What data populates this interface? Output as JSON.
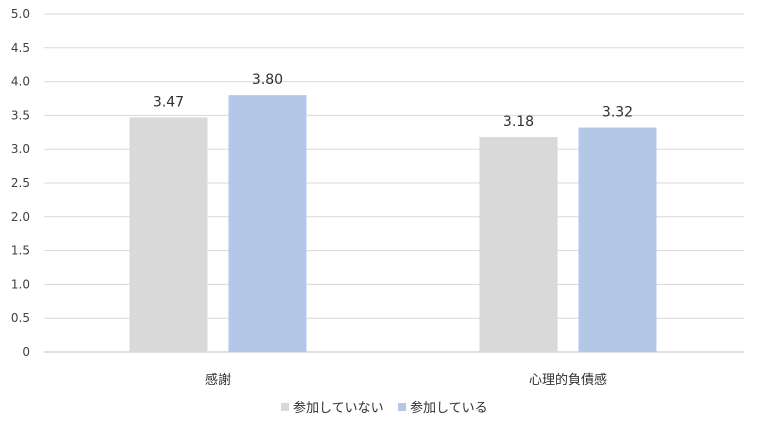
{
  "chart_data": {
    "type": "bar",
    "categories": [
      "感謝",
      "心理的負債感"
    ],
    "series": [
      {
        "name": "参加していない",
        "values": [
          3.47,
          3.18
        ],
        "labels": [
          "3.47",
          "3.18"
        ],
        "color": "#d9d9d9"
      },
      {
        "name": "参加している",
        "values": [
          3.8,
          3.32
        ],
        "labels": [
          "3.80",
          "3.32"
        ],
        "color": "#b4c7e7"
      }
    ],
    "y_ticks": [
      "0",
      "0.5",
      "1.0",
      "1.5",
      "2.0",
      "2.5",
      "3.0",
      "3.5",
      "4.0",
      "4.5",
      "5.0"
    ],
    "ylim": [
      0,
      5
    ],
    "grid": true,
    "grid_color": "#d9d9d9",
    "legend_position": "bottom"
  }
}
